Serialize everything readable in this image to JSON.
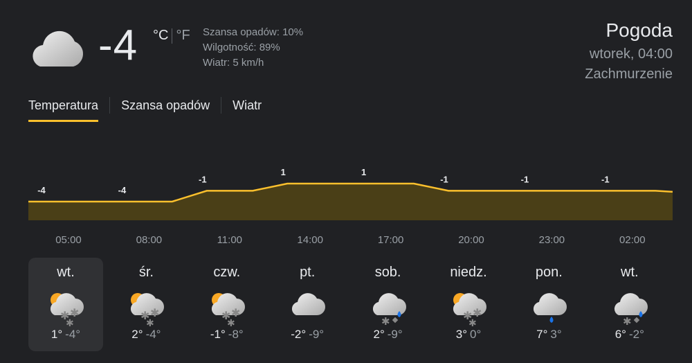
{
  "current": {
    "icon": "cloudy-icon",
    "temperature": "-4",
    "unit_c": "°C",
    "unit_f": "°F",
    "precip": "Szansa opadów: 10%",
    "humidity": "Wilgotność: 89%",
    "wind": "Wiatr: 5 km/h"
  },
  "header": {
    "title": "Pogoda",
    "datetime": "wtorek, 04:00",
    "condition": "Zachmurzenie"
  },
  "tabs": [
    {
      "label": "Temperatura",
      "active": true
    },
    {
      "label": "Szansa opadów"
    },
    {
      "label": "Wiatr"
    }
  ],
  "chart_data": {
    "type": "area",
    "x": [
      "05:00",
      "08:00",
      "11:00",
      "14:00",
      "17:00",
      "20:00",
      "23:00",
      "02:00"
    ],
    "values": [
      -4,
      -4,
      -1,
      1,
      1,
      -1,
      -1,
      -1
    ],
    "labels": [
      "-4",
      "-4",
      "-1",
      "1",
      "1",
      "-1",
      "-1",
      "-1"
    ],
    "line_color": "#fbc02d",
    "fill_color": "#4a3f17"
  },
  "days": [
    {
      "name": "wt.",
      "icon": "partly-cloudy-snow-icon",
      "high": "1°",
      "low": "-4°",
      "selected": true
    },
    {
      "name": "śr.",
      "icon": "partly-cloudy-snow-icon",
      "high": "2°",
      "low": "-4°"
    },
    {
      "name": "czw.",
      "icon": "partly-cloudy-snow-icon",
      "high": "-1°",
      "low": "-8°"
    },
    {
      "name": "pt.",
      "icon": "cloudy-icon",
      "high": "-2°",
      "low": "-9°"
    },
    {
      "name": "sob.",
      "icon": "sleet-icon",
      "high": "2°",
      "low": "-9°"
    },
    {
      "name": "niedz.",
      "icon": "partly-cloudy-snow-icon",
      "high": "3°",
      "low": "0°"
    },
    {
      "name": "pon.",
      "icon": "rain-icon",
      "high": "7°",
      "low": "3°"
    },
    {
      "name": "wt.",
      "icon": "sleet-icon",
      "high": "6°",
      "low": "-2°"
    }
  ]
}
